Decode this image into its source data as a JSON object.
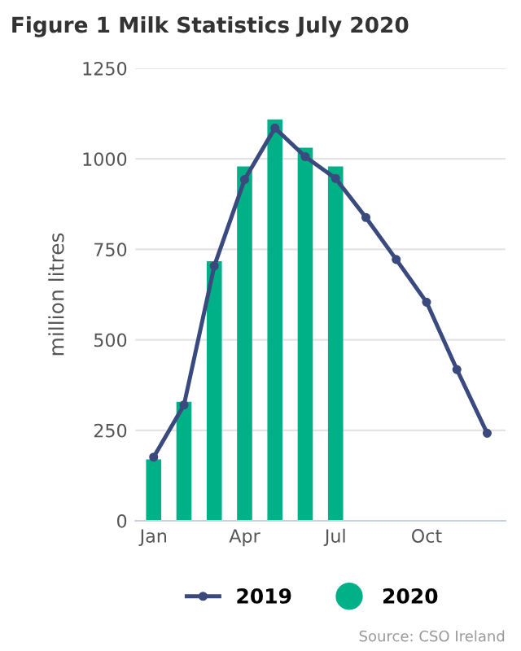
{
  "chart_data": {
    "type": "bar",
    "title": "Figure 1 Milk Statistics July 2020",
    "ylabel": "million litres",
    "categories": [
      "Jan",
      null,
      null,
      "Apr",
      null,
      null,
      "Jul",
      null,
      null,
      "Oct",
      null,
      null
    ],
    "series": [
      {
        "name": "2019",
        "type": "line",
        "color": "#3b4a7e",
        "marker": "circle",
        "values": [
          176,
          320,
          704,
          943,
          1085,
          1006,
          946,
          838,
          722,
          604,
          418,
          242
        ]
      },
      {
        "name": "2020",
        "color": "#00b188",
        "values": [
          170,
          329,
          717,
          979,
          1109,
          1031,
          979,
          null,
          null,
          null,
          null,
          null
        ]
      }
    ],
    "ylim": [
      0,
      1250
    ],
    "yticks": [
      0,
      250,
      500,
      750,
      1000,
      1250
    ],
    "grid": "y",
    "legend": "bottom",
    "annotations": [
      "Source: CSO Ireland"
    ]
  }
}
